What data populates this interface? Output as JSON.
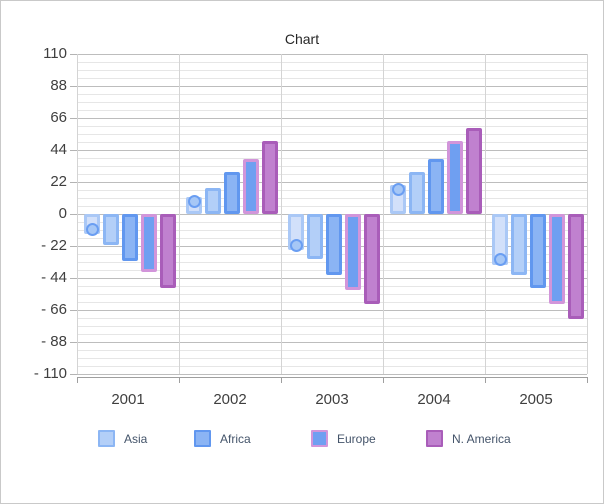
{
  "chart_data": {
    "type": "bar",
    "title": "Chart",
    "categories": [
      "2001",
      "2002",
      "2003",
      "2004",
      "2005"
    ],
    "y_axis": {
      "min": -110,
      "max": 110,
      "major_step": 22,
      "minor_step": 5.5,
      "tick_labels": [
        "110",
        "88",
        "66",
        "44",
        "22",
        "0",
        "- 22",
        "- 44",
        "- 66",
        "- 88",
        "- 110"
      ]
    },
    "grid": {
      "major_horizontal": true,
      "minor_horizontal": true,
      "vertical_category_lines": true
    },
    "legend_position": "bottom",
    "series": [
      {
        "name": "",
        "in_legend": false,
        "fill": "#d2e0fa",
        "border": "#aac8f6",
        "marker": {
          "shape": "circle",
          "fill": "#a6c7f6",
          "border": "#6a9ef2"
        },
        "values": [
          -14,
          12,
          -25,
          20,
          -35
        ]
      },
      {
        "name": "Asia",
        "in_legend": true,
        "fill": "#b3cff8",
        "border": "#8cb6f4",
        "values": [
          -21,
          18,
          -31,
          29,
          -42
        ]
      },
      {
        "name": "Africa",
        "in_legend": true,
        "fill": "#8bb4f4",
        "border": "#6197ef",
        "values": [
          -32,
          29,
          -42,
          38,
          -51
        ]
      },
      {
        "name": "Europe",
        "in_legend": true,
        "fill": "#6f9ff1",
        "border": "#d295da",
        "values": [
          -40,
          38,
          -52,
          50,
          -62
        ]
      },
      {
        "name": "N. America",
        "in_legend": true,
        "fill": "#c081cf",
        "border": "#a95db9",
        "values": [
          -51,
          50,
          -62,
          59,
          -72
        ]
      }
    ]
  }
}
